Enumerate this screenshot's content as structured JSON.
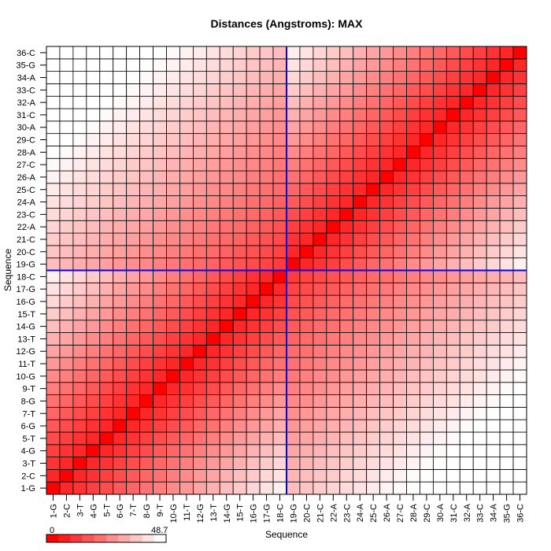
{
  "chart_data": {
    "type": "heatmap",
    "title": "Distances (Angstroms):  MAX",
    "xlabel": "Sequence",
    "ylabel": "Sequence",
    "labels": [
      "1-G",
      "2-C",
      "3-T",
      "4-G",
      "5-T",
      "6-G",
      "7-T",
      "8-G",
      "9-T",
      "10-G",
      "11-T",
      "12-G",
      "13-T",
      "14-G",
      "15-T",
      "16-G",
      "17-G",
      "18-C",
      "19-G",
      "20-C",
      "21-C",
      "22-A",
      "23-C",
      "24-A",
      "25-C",
      "26-A",
      "27-C",
      "28-A",
      "29-C",
      "30-A",
      "31-C",
      "32-A",
      "33-C",
      "34-A",
      "35-G",
      "36-C"
    ],
    "value_range": [
      0,
      48.7
    ],
    "scale_labels": [
      "0",
      "48.7"
    ],
    "color_low": "#ff0000",
    "color_high": "#ffffff",
    "marker_lines": {
      "x_after": "18-C",
      "y_after": "18-C",
      "color": "#0000ff"
    },
    "grid": true,
    "description_of_values": "pairwise distance; increases with sequence separation within each half, two blocks meeting at 18-C/19-G"
  }
}
